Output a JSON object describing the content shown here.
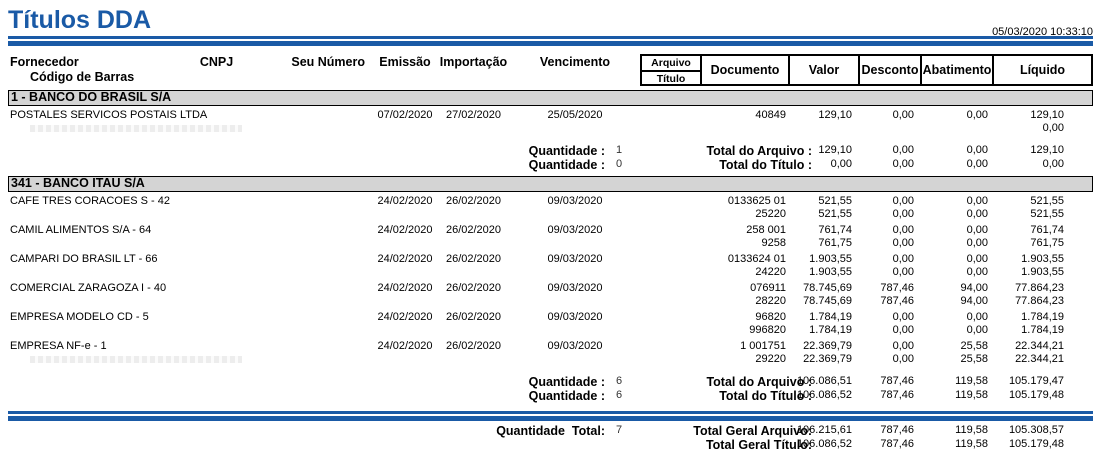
{
  "report": {
    "title": "Títulos DDA",
    "generated_at": "05/03/2020 10:33:10"
  },
  "columns": {
    "fornecedor": "Fornecedor",
    "codigo_de_barras": "Código de Barras",
    "cnpj": "CNPJ",
    "seu_numero": "Seu Número",
    "emissao": "Emissão",
    "importacao": "Importação",
    "vencimento": "Vencimento",
    "arquivo": "Arquivo",
    "titulo": "Título",
    "documento": "Documento",
    "valor": "Valor",
    "desconto": "Desconto",
    "abatimento": "Abatimento",
    "liquido": "Líquido"
  },
  "labels": {
    "quantidade": "Quantidade :"
  },
  "sections": [
    {
      "name": "1 - BANCO DO BRASIL S/A",
      "suppliers": [
        {
          "fornecedor": "POSTALES SERVICOS POSTAIS LTDA",
          "emissao": "07/02/2020",
          "importacao": "27/02/2020",
          "vencimento": "25/05/2020",
          "faint_barcode": true,
          "lines": [
            {
              "documento": "40849",
              "valor": "129,10",
              "desconto": "0,00",
              "abatimento": "0,00",
              "liquido": "129,10"
            },
            {
              "documento": "",
              "valor": "",
              "desconto": "",
              "abatimento": "",
              "liquido": "0,00"
            }
          ]
        }
      ],
      "totals": [
        {
          "quantidade": "1",
          "label": "Total do Arquivo :",
          "valor": "129,10",
          "desconto": "0,00",
          "abatimento": "0,00",
          "liquido": "129,10"
        },
        {
          "quantidade": "0",
          "label": "Total do Título :",
          "valor": "0,00",
          "desconto": "0,00",
          "abatimento": "0,00",
          "liquido": "0,00"
        }
      ]
    },
    {
      "name": "341 - BANCO ITAU S/A",
      "suppliers": [
        {
          "fornecedor": "CAFE TRES CORACOES S - 42",
          "emissao": "24/02/2020",
          "importacao": "26/02/2020",
          "vencimento": "09/03/2020",
          "faint_barcode": false,
          "lines": [
            {
              "documento": "0133625 01",
              "valor": "521,55",
              "desconto": "0,00",
              "abatimento": "0,00",
              "liquido": "521,55"
            },
            {
              "documento": "25220",
              "valor": "521,55",
              "desconto": "0,00",
              "abatimento": "0,00",
              "liquido": "521,55"
            }
          ]
        },
        {
          "fornecedor": "CAMIL ALIMENTOS S/A - 64",
          "emissao": "24/02/2020",
          "importacao": "26/02/2020",
          "vencimento": "09/03/2020",
          "faint_barcode": false,
          "lines": [
            {
              "documento": "258 001",
              "valor": "761,74",
              "desconto": "0,00",
              "abatimento": "0,00",
              "liquido": "761,74"
            },
            {
              "documento": "9258",
              "valor": "761,75",
              "desconto": "0,00",
              "abatimento": "0,00",
              "liquido": "761,75"
            }
          ]
        },
        {
          "fornecedor": "CAMPARI DO BRASIL LT - 66",
          "emissao": "24/02/2020",
          "importacao": "26/02/2020",
          "vencimento": "09/03/2020",
          "faint_barcode": false,
          "lines": [
            {
              "documento": "0133624 01",
              "valor": "1.903,55",
              "desconto": "0,00",
              "abatimento": "0,00",
              "liquido": "1.903,55"
            },
            {
              "documento": "24220",
              "valor": "1.903,55",
              "desconto": "0,00",
              "abatimento": "0,00",
              "liquido": "1.903,55"
            }
          ]
        },
        {
          "fornecedor": "COMERCIAL ZARAGOZA I - 40",
          "emissao": "24/02/2020",
          "importacao": "26/02/2020",
          "vencimento": "09/03/2020",
          "faint_barcode": false,
          "lines": [
            {
              "documento": "076911",
              "valor": "78.745,69",
              "desconto": "787,46",
              "abatimento": "94,00",
              "liquido": "77.864,23"
            },
            {
              "documento": "28220",
              "valor": "78.745,69",
              "desconto": "787,46",
              "abatimento": "94,00",
              "liquido": "77.864,23"
            }
          ]
        },
        {
          "fornecedor": "EMPRESA MODELO CD - 5",
          "emissao": "24/02/2020",
          "importacao": "26/02/2020",
          "vencimento": "09/03/2020",
          "faint_barcode": false,
          "lines": [
            {
              "documento": "96820",
              "valor": "1.784,19",
              "desconto": "0,00",
              "abatimento": "0,00",
              "liquido": "1.784,19"
            },
            {
              "documento": "996820",
              "valor": "1.784,19",
              "desconto": "0,00",
              "abatimento": "0,00",
              "liquido": "1.784,19"
            }
          ]
        },
        {
          "fornecedor": "EMPRESA NF-e - 1",
          "emissao": "24/02/2020",
          "importacao": "26/02/2020",
          "vencimento": "09/03/2020",
          "faint_barcode": true,
          "lines": [
            {
              "documento": "1 001751",
              "valor": "22.369,79",
              "desconto": "0,00",
              "abatimento": "25,58",
              "liquido": "22.344,21"
            },
            {
              "documento": "29220",
              "valor": "22.369,79",
              "desconto": "0,00",
              "abatimento": "25,58",
              "liquido": "22.344,21"
            }
          ]
        }
      ],
      "totals": [
        {
          "quantidade": "6",
          "label": "Total do Arquivo :",
          "valor": "106.086,51",
          "desconto": "787,46",
          "abatimento": "119,58",
          "liquido": "105.179,47"
        },
        {
          "quantidade": "6",
          "label": "Total do Título :",
          "valor": "106.086,52",
          "desconto": "787,46",
          "abatimento": "119,58",
          "liquido": "105.179,48"
        }
      ]
    }
  ],
  "grand_total": {
    "quantidade_label": "Quantidade  Total:",
    "quantidade": "7",
    "rows": [
      {
        "label": "Total Geral Arquivo:",
        "valor": "106.215,61",
        "desconto": "787,46",
        "abatimento": "119,58",
        "liquido": "105.308,57"
      },
      {
        "label": "Total Geral Título:",
        "valor": "106.086,52",
        "desconto": "787,46",
        "abatimento": "119,58",
        "liquido": "105.179,48"
      }
    ]
  },
  "colors": {
    "accent_blue": "#1a5aa6",
    "section_bar_bg": "#d4d4d4",
    "faint_barcode_gray": "#ededed"
  }
}
